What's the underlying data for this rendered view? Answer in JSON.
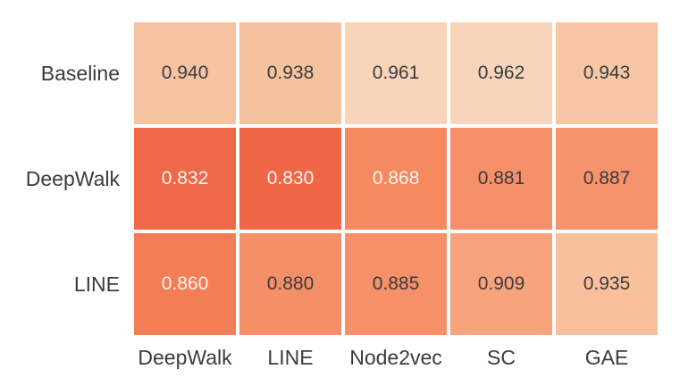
{
  "colors": {
    "background": "#ffffff",
    "label_text": "#3b3b3d",
    "cell_text_dark": "#3b3b3d",
    "cell_text_light": "#fdf6f0",
    "grid_gap": "#ffffff"
  },
  "chart_data": {
    "type": "heatmap",
    "title": "",
    "xlabel": "",
    "ylabel": "",
    "x_categories": [
      "DeepWalk",
      "LINE",
      "Node2vec",
      "SC",
      "GAE"
    ],
    "y_categories": [
      "Baseline",
      "DeepWalk",
      "LINE"
    ],
    "series": [
      {
        "name": "Baseline",
        "values": [
          0.94,
          0.938,
          0.961,
          0.962,
          0.943
        ]
      },
      {
        "name": "DeepWalk",
        "values": [
          0.832,
          0.83,
          0.868,
          0.881,
          0.887
        ]
      },
      {
        "name": "LINE",
        "values": [
          0.86,
          0.88,
          0.885,
          0.909,
          0.935
        ]
      }
    ],
    "value_range": [
      0.83,
      0.962
    ],
    "colormap": "orange-sequential (low=dark orange-red, high=light peach)",
    "legend_position": "none",
    "grid_on": false,
    "cells": [
      [
        {
          "label": "0.940",
          "bg": "#f6c2a0",
          "fg": "#3b3b3d"
        },
        {
          "label": "0.938",
          "bg": "#f6c19f",
          "fg": "#3b3b3d"
        },
        {
          "label": "0.961",
          "bg": "#f8d4b9",
          "fg": "#3b3b3d"
        },
        {
          "label": "0.962",
          "bg": "#f8d5ba",
          "fg": "#3b3b3d"
        },
        {
          "label": "0.943",
          "bg": "#f7c6a4",
          "fg": "#3b3b3d"
        }
      ],
      [
        {
          "label": "0.832",
          "bg": "#f0684a",
          "fg": "#fdf6f0"
        },
        {
          "label": "0.830",
          "bg": "#f06747",
          "fg": "#fdf6f0"
        },
        {
          "label": "0.868",
          "bg": "#f5895f",
          "fg": "#fdf6f0"
        },
        {
          "label": "0.881",
          "bg": "#f5906a",
          "fg": "#3b3b3d"
        },
        {
          "label": "0.887",
          "bg": "#f5936d",
          "fg": "#3b3b3d"
        }
      ],
      [
        {
          "label": "0.860",
          "bg": "#f37d54",
          "fg": "#fdf6f0"
        },
        {
          "label": "0.880",
          "bg": "#f58f68",
          "fg": "#3b3b3d"
        },
        {
          "label": "0.885",
          "bg": "#f59069",
          "fg": "#3b3b3d"
        },
        {
          "label": "0.909",
          "bg": "#f7a47c",
          "fg": "#3b3b3d"
        },
        {
          "label": "0.935",
          "bg": "#f8c09b",
          "fg": "#3b3b3d"
        }
      ]
    ]
  }
}
